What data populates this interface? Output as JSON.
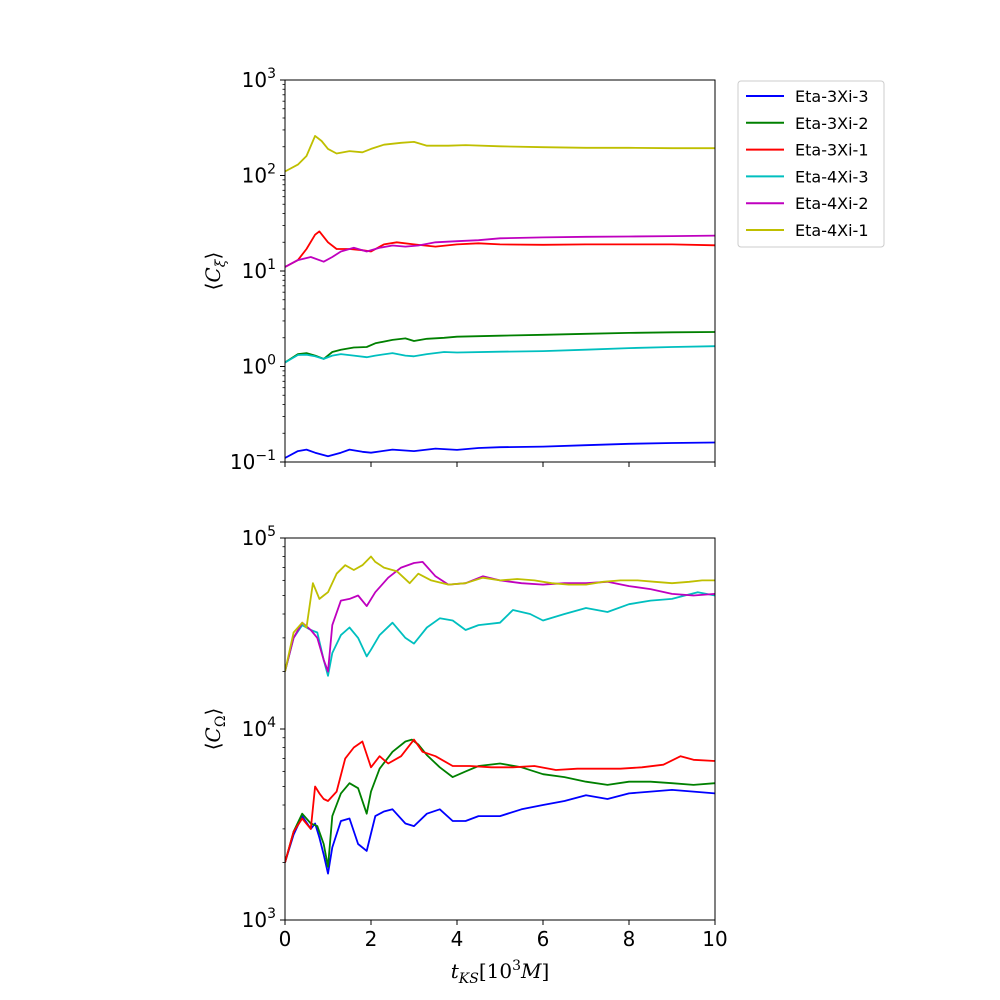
{
  "chart_data": [
    {
      "type": "line",
      "ylabel": "⟨C_ξ⟩",
      "yscale": "log",
      "ylim": [
        0.1,
        1000
      ],
      "xlim": [
        0,
        10
      ],
      "yticks": [
        {
          "base": "10",
          "exp": "−1"
        },
        {
          "base": "10",
          "exp": "0"
        },
        {
          "base": "10",
          "exp": "1"
        },
        {
          "base": "10",
          "exp": "2"
        },
        {
          "base": "10",
          "exp": "3"
        }
      ],
      "legend_position": "outside-upper-right",
      "series": [
        {
          "name": "Eta-3Xi-3",
          "color": "#0000ff",
          "x": [
            0,
            0.3,
            0.5,
            0.7,
            1.0,
            1.3,
            1.5,
            1.8,
            2.0,
            2.5,
            3.0,
            3.5,
            4.0,
            4.5,
            5.0,
            6.0,
            7.0,
            8.0,
            9.0,
            10.0
          ],
          "y": [
            0.11,
            0.13,
            0.135,
            0.125,
            0.115,
            0.125,
            0.135,
            0.128,
            0.125,
            0.135,
            0.13,
            0.138,
            0.134,
            0.14,
            0.143,
            0.145,
            0.15,
            0.155,
            0.158,
            0.16
          ]
        },
        {
          "name": "Eta-3Xi-2",
          "color": "#008000",
          "x": [
            0,
            0.3,
            0.5,
            0.7,
            0.9,
            1.1,
            1.3,
            1.6,
            1.9,
            2.1,
            2.5,
            2.8,
            3.0,
            3.3,
            3.7,
            4.0,
            5.0,
            6.0,
            7.0,
            8.0,
            9.0,
            10.0
          ],
          "y": [
            1.1,
            1.35,
            1.38,
            1.3,
            1.2,
            1.42,
            1.5,
            1.58,
            1.6,
            1.75,
            1.9,
            1.97,
            1.85,
            1.95,
            2.0,
            2.05,
            2.1,
            2.15,
            2.2,
            2.25,
            2.28,
            2.3
          ]
        },
        {
          "name": "Eta-3Xi-1",
          "color": "#ff0000",
          "x": [
            0,
            0.3,
            0.5,
            0.7,
            0.8,
            1.0,
            1.2,
            1.5,
            1.8,
            2.0,
            2.3,
            2.6,
            3.0,
            3.5,
            4.0,
            4.5,
            5.0,
            6.0,
            7.0,
            8.0,
            9.0,
            10.0
          ],
          "y": [
            11,
            13,
            17,
            24,
            26,
            20,
            17,
            17,
            16.5,
            16,
            19,
            20,
            19,
            18,
            19,
            19.5,
            19,
            18.8,
            19,
            19,
            19,
            18.6
          ]
        },
        {
          "name": "Eta-4Xi-3",
          "color": "#00bfbf",
          "x": [
            0,
            0.3,
            0.5,
            0.7,
            0.9,
            1.1,
            1.3,
            1.6,
            1.9,
            2.1,
            2.5,
            2.8,
            3.0,
            3.3,
            3.7,
            4.0,
            5.0,
            6.0,
            7.0,
            8.0,
            9.0,
            10.0
          ],
          "y": [
            1.1,
            1.32,
            1.33,
            1.28,
            1.2,
            1.3,
            1.35,
            1.3,
            1.25,
            1.3,
            1.38,
            1.3,
            1.28,
            1.35,
            1.42,
            1.4,
            1.43,
            1.45,
            1.5,
            1.56,
            1.6,
            1.63
          ]
        },
        {
          "name": "Eta-4Xi-2",
          "color": "#bf00bf",
          "x": [
            0,
            0.3,
            0.6,
            0.9,
            1.1,
            1.3,
            1.6,
            1.9,
            2.2,
            2.5,
            2.8,
            3.1,
            3.5,
            4.0,
            4.5,
            5.0,
            6.0,
            7.0,
            8.0,
            9.0,
            10.0
          ],
          "y": [
            11,
            13,
            14,
            12.5,
            14,
            16,
            17.5,
            16,
            17.5,
            18.5,
            18,
            18.5,
            20,
            20.5,
            21,
            22,
            22.5,
            22.8,
            23,
            23.2,
            23.5
          ]
        },
        {
          "name": "Eta-4Xi-1",
          "color": "#bfbf00",
          "x": [
            0,
            0.3,
            0.5,
            0.7,
            0.85,
            1.0,
            1.2,
            1.5,
            1.8,
            2.0,
            2.3,
            2.7,
            3.0,
            3.3,
            3.8,
            4.2,
            5.0,
            6.0,
            7.0,
            8.0,
            9.0,
            10.0
          ],
          "y": [
            110,
            130,
            160,
            260,
            230,
            190,
            170,
            180,
            175,
            190,
            210,
            220,
            225,
            205,
            205,
            208,
            202,
            198,
            195,
            195,
            193,
            193
          ]
        }
      ]
    },
    {
      "type": "line",
      "xlabel": "t_KS[10^3M]",
      "ylabel": "⟨C_Ω⟩",
      "yscale": "log",
      "ylim": [
        1000,
        100000
      ],
      "xlim": [
        0,
        10
      ],
      "xticks": [
        "0",
        "2",
        "4",
        "6",
        "8",
        "10"
      ],
      "yticks": [
        {
          "base": "10",
          "exp": "3"
        },
        {
          "base": "10",
          "exp": "4"
        },
        {
          "base": "10",
          "exp": "5"
        }
      ],
      "series": [
        {
          "name": "Eta-3Xi-3",
          "color": "#0000ff",
          "x": [
            0,
            0.2,
            0.4,
            0.6,
            0.7,
            0.8,
            0.9,
            1.0,
            1.1,
            1.3,
            1.5,
            1.7,
            1.9,
            2.1,
            2.3,
            2.5,
            2.8,
            3.0,
            3.3,
            3.6,
            3.9,
            4.2,
            4.5,
            5.0,
            5.5,
            6.0,
            6.5,
            7.0,
            7.5,
            8.0,
            8.5,
            9.0,
            9.5,
            10.0
          ],
          "y": [
            2000,
            2800,
            3500,
            3000,
            3200,
            2700,
            2200,
            1750,
            2400,
            3300,
            3400,
            2500,
            2300,
            3500,
            3700,
            3800,
            3200,
            3100,
            3600,
            3800,
            3300,
            3300,
            3500,
            3500,
            3800,
            4000,
            4200,
            4500,
            4300,
            4600,
            4700,
            4800,
            4700,
            4600
          ]
        },
        {
          "name": "Eta-3Xi-2",
          "color": "#008000",
          "x": [
            0,
            0.2,
            0.4,
            0.6,
            0.75,
            0.9,
            1.0,
            1.1,
            1.3,
            1.5,
            1.7,
            1.9,
            2.0,
            2.2,
            2.5,
            2.8,
            2.95,
            3.1,
            3.3,
            3.6,
            3.9,
            4.2,
            4.5,
            5.0,
            5.5,
            6.0,
            6.5,
            7.0,
            7.5,
            8.0,
            8.5,
            9.0,
            9.5,
            10.0
          ],
          "y": [
            2000,
            2900,
            3600,
            3200,
            3100,
            2500,
            1900,
            3500,
            4600,
            5200,
            4900,
            3600,
            4700,
            6200,
            7600,
            8600,
            8800,
            8300,
            7300,
            6300,
            5600,
            6000,
            6400,
            6600,
            6300,
            5800,
            5600,
            5300,
            5100,
            5300,
            5300,
            5200,
            5100,
            5200
          ]
        },
        {
          "name": "Eta-3Xi-1",
          "color": "#ff0000",
          "x": [
            0,
            0.2,
            0.4,
            0.6,
            0.7,
            0.8,
            0.9,
            1.0,
            1.2,
            1.4,
            1.6,
            1.8,
            2.0,
            2.2,
            2.4,
            2.7,
            3.0,
            3.2,
            3.5,
            3.9,
            4.3,
            4.8,
            5.3,
            5.8,
            6.3,
            6.8,
            7.3,
            7.8,
            8.3,
            8.8,
            9.2,
            9.5,
            10.0
          ],
          "y": [
            2000,
            2900,
            3400,
            3000,
            5000,
            4600,
            4300,
            4200,
            4700,
            7000,
            8000,
            8600,
            6300,
            7200,
            6600,
            7200,
            8800,
            7600,
            7200,
            6400,
            6400,
            6300,
            6300,
            6400,
            6100,
            6200,
            6200,
            6200,
            6300,
            6500,
            7200,
            6900,
            6800
          ]
        },
        {
          "name": "Eta-4Xi-3",
          "color": "#00bfbf",
          "x": [
            0,
            0.2,
            0.4,
            0.6,
            0.75,
            0.9,
            1.0,
            1.1,
            1.3,
            1.5,
            1.7,
            1.9,
            2.0,
            2.2,
            2.5,
            2.8,
            3.0,
            3.3,
            3.6,
            3.9,
            4.2,
            4.5,
            5.0,
            5.3,
            5.7,
            6.0,
            6.5,
            7.0,
            7.5,
            8.0,
            8.5,
            9.0,
            9.3,
            9.6,
            10.0
          ],
          "y": [
            20000,
            30000,
            35000,
            33000,
            32000,
            23000,
            19000,
            25000,
            31000,
            34000,
            30000,
            24000,
            26000,
            31000,
            36000,
            30000,
            28000,
            34000,
            38000,
            37000,
            33000,
            35000,
            36000,
            42000,
            40000,
            37000,
            40000,
            43000,
            41000,
            45000,
            47000,
            48000,
            50000,
            52000,
            50000
          ]
        },
        {
          "name": "Eta-4Xi-2",
          "color": "#bf00bf",
          "x": [
            0,
            0.2,
            0.4,
            0.6,
            0.75,
            0.9,
            1.0,
            1.1,
            1.3,
            1.5,
            1.7,
            1.9,
            2.1,
            2.4,
            2.7,
            3.0,
            3.2,
            3.5,
            3.8,
            4.2,
            4.6,
            5.0,
            5.5,
            6.0,
            6.5,
            7.0,
            7.5,
            8.0,
            8.5,
            9.0,
            9.5,
            10.0
          ],
          "y": [
            20000,
            30000,
            36000,
            33000,
            30000,
            23000,
            20000,
            35000,
            47000,
            48000,
            50000,
            44000,
            52000,
            62000,
            70000,
            74000,
            75000,
            63000,
            57000,
            58000,
            63000,
            60000,
            58000,
            57000,
            58000,
            58000,
            59000,
            56000,
            54000,
            51000,
            50000,
            51000
          ]
        },
        {
          "name": "Eta-4Xi-1",
          "color": "#bfbf00",
          "x": [
            0,
            0.2,
            0.4,
            0.5,
            0.65,
            0.8,
            0.9,
            1.0,
            1.2,
            1.4,
            1.6,
            1.8,
            2.0,
            2.1,
            2.3,
            2.6,
            2.9,
            3.1,
            3.4,
            3.8,
            4.2,
            4.6,
            5.0,
            5.4,
            5.8,
            6.2,
            6.6,
            7.0,
            7.4,
            7.8,
            8.2,
            8.6,
            9.0,
            9.4,
            9.7,
            10.0
          ],
          "y": [
            20000,
            32000,
            36000,
            34000,
            58000,
            48000,
            50000,
            52000,
            65000,
            72000,
            68000,
            72000,
            80000,
            75000,
            70000,
            67000,
            58000,
            65000,
            60000,
            57000,
            58000,
            62000,
            60000,
            61000,
            60000,
            58000,
            57000,
            57000,
            59000,
            60000,
            60000,
            59000,
            58000,
            59000,
            60000,
            60000
          ]
        }
      ]
    }
  ]
}
